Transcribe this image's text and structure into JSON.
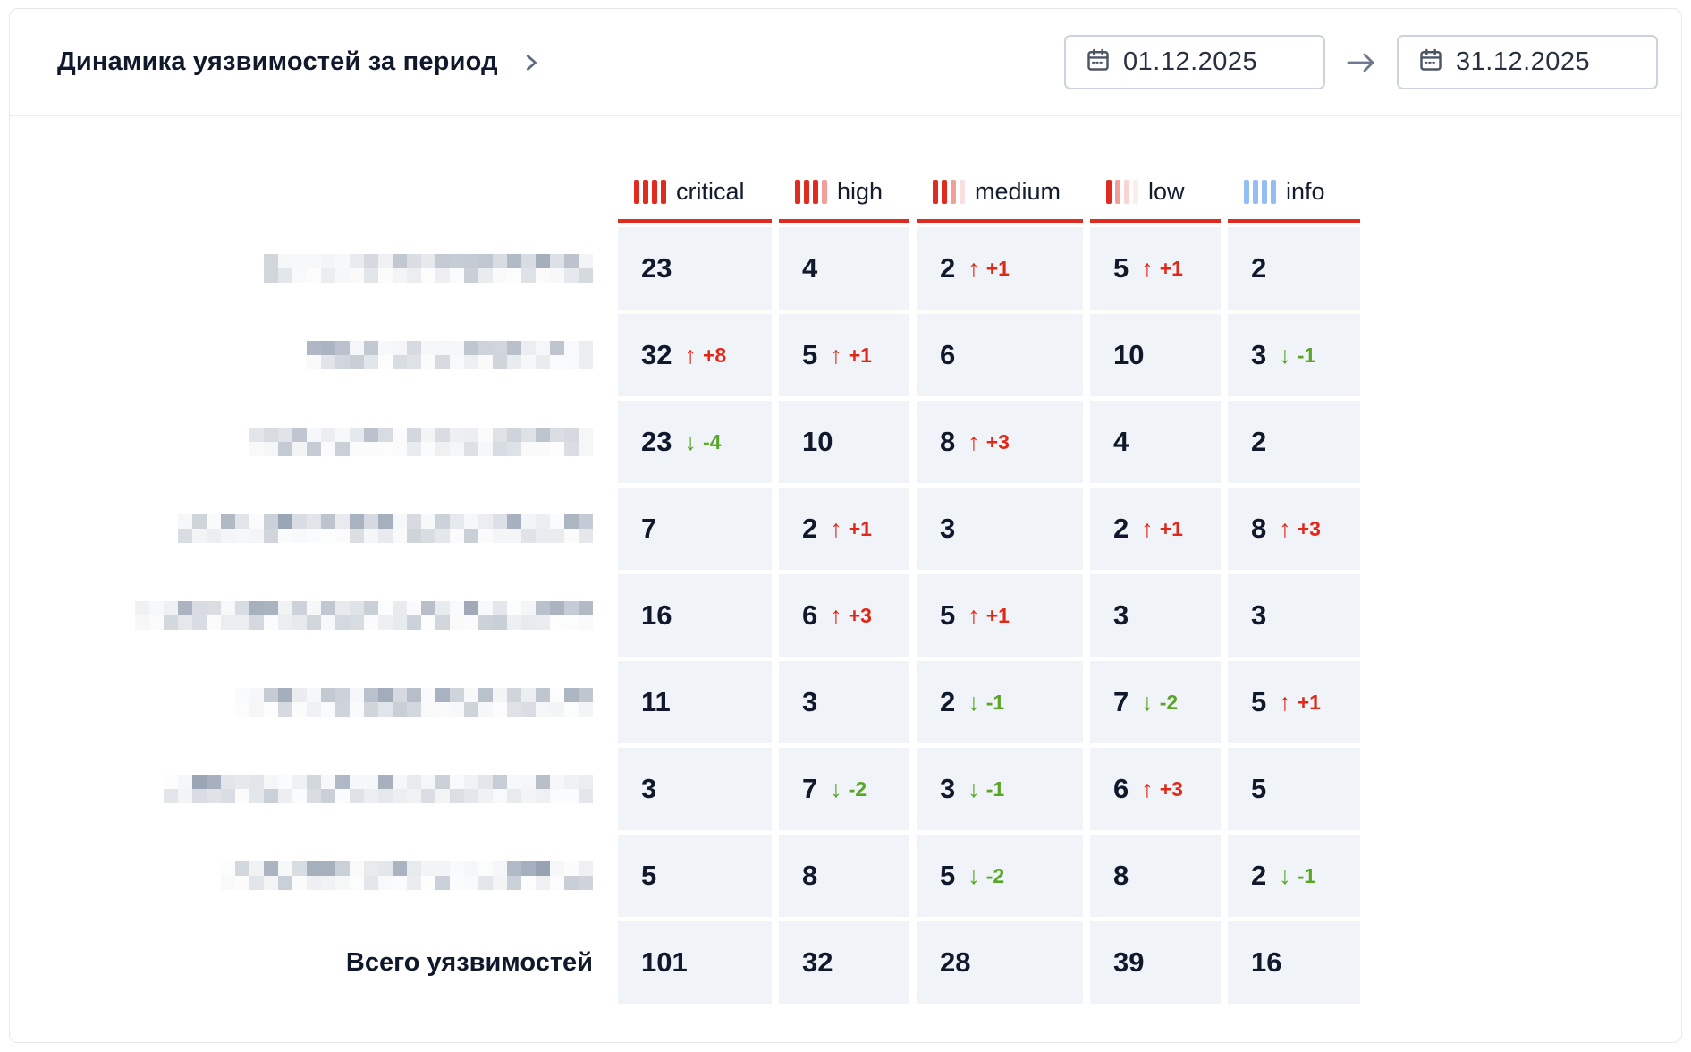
{
  "panel": {
    "title": "Динамика уязвимостей за период",
    "date_from": "01.12.2025",
    "date_to": "31.12.2025"
  },
  "colors": {
    "accent_red": "#e02b20",
    "info_blue": "#94bdf3",
    "delta_up": "#e12717",
    "delta_down": "#58a528"
  },
  "table": {
    "columns": [
      {
        "key": "critical",
        "label": "critical",
        "icon": "severity-bars-icon",
        "bar_color": "#e02b20",
        "bar_opacities": [
          1,
          1,
          1,
          1
        ]
      },
      {
        "key": "high",
        "label": "high",
        "icon": "severity-bars-icon",
        "bar_color": "#e02b20",
        "bar_opacities": [
          1,
          1,
          1,
          0.45
        ]
      },
      {
        "key": "medium",
        "label": "medium",
        "icon": "severity-bars-icon",
        "bar_color": "#e02b20",
        "bar_opacities": [
          1,
          1,
          0.45,
          0.15
        ]
      },
      {
        "key": "low",
        "label": "low",
        "icon": "severity-bars-icon",
        "bar_color": "#e02b20",
        "bar_opacities": [
          1,
          0.45,
          0.2,
          0.08
        ]
      },
      {
        "key": "info",
        "label": "info",
        "icon": "severity-bars-icon",
        "bar_color": "#94bdf3",
        "bar_opacities": [
          1,
          1,
          1,
          1
        ]
      }
    ],
    "rows": [
      {
        "label_redacted": true,
        "redacted_width": 360,
        "cells": [
          {
            "v": 23
          },
          {
            "v": 4
          },
          {
            "v": 2,
            "d": 1
          },
          {
            "v": 5,
            "d": 1
          },
          {
            "v": 2
          }
        ]
      },
      {
        "label_redacted": true,
        "redacted_width": 325,
        "cells": [
          {
            "v": 32,
            "d": 8
          },
          {
            "v": 5,
            "d": 1
          },
          {
            "v": 6
          },
          {
            "v": 10
          },
          {
            "v": 3,
            "d": -1
          }
        ]
      },
      {
        "label_redacted": true,
        "redacted_width": 390,
        "cells": [
          {
            "v": 23,
            "d": -4
          },
          {
            "v": 10
          },
          {
            "v": 8,
            "d": 3
          },
          {
            "v": 4
          },
          {
            "v": 2
          }
        ]
      },
      {
        "label_redacted": true,
        "redacted_width": 465,
        "cells": [
          {
            "v": 7
          },
          {
            "v": 2,
            "d": 1
          },
          {
            "v": 3
          },
          {
            "v": 2,
            "d": 1
          },
          {
            "v": 8,
            "d": 3
          }
        ]
      },
      {
        "label_redacted": true,
        "redacted_width": 510,
        "cells": [
          {
            "v": 16
          },
          {
            "v": 6,
            "d": 3
          },
          {
            "v": 5,
            "d": 1
          },
          {
            "v": 3
          },
          {
            "v": 3
          }
        ]
      },
      {
        "label_redacted": true,
        "redacted_width": 395,
        "cells": [
          {
            "v": 11
          },
          {
            "v": 3
          },
          {
            "v": 2,
            "d": -1
          },
          {
            "v": 7,
            "d": -2
          },
          {
            "v": 5,
            "d": 1
          }
        ]
      },
      {
        "label_redacted": true,
        "redacted_width": 480,
        "cells": [
          {
            "v": 3
          },
          {
            "v": 7,
            "d": -2
          },
          {
            "v": 3,
            "d": -1
          },
          {
            "v": 6,
            "d": 3
          },
          {
            "v": 5
          }
        ]
      },
      {
        "label_redacted": true,
        "redacted_width": 415,
        "cells": [
          {
            "v": 5
          },
          {
            "v": 8
          },
          {
            "v": 5,
            "d": -2
          },
          {
            "v": 8
          },
          {
            "v": 2,
            "d": -1
          }
        ]
      }
    ],
    "total": {
      "label": "Всего уязвимостей",
      "values": [
        101,
        32,
        28,
        39,
        16
      ]
    }
  }
}
